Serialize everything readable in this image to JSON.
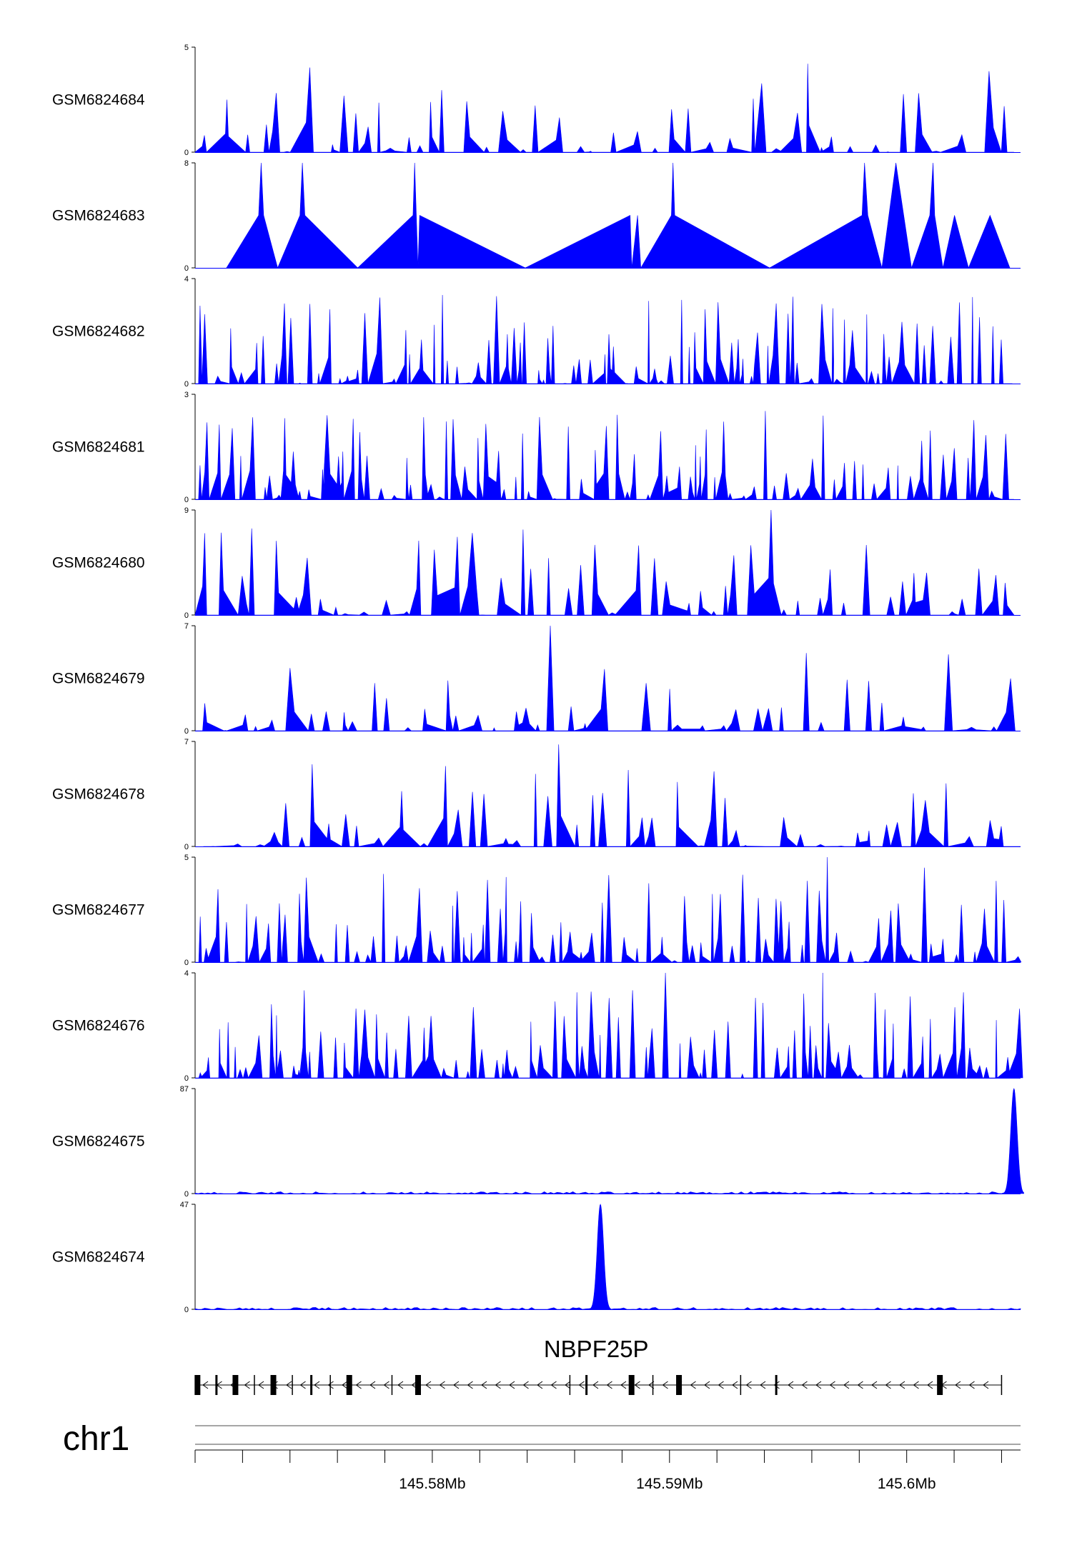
{
  "chart_data": {
    "type": "area",
    "colors": {
      "signal": "#0000ff",
      "axis": "#000000",
      "frame": "#888888"
    },
    "chromosome": "chr1",
    "xlim": [
      145.57,
      145.6048
    ],
    "x_ticks": [
      {
        "value": 145.58,
        "label": "145.58Mb"
      },
      {
        "value": 145.59,
        "label": "145.59Mb"
      },
      {
        "value": 145.6,
        "label": "145.6Mb"
      }
    ],
    "tracks": [
      {
        "name": "GSM6824684",
        "ymax": 5,
        "ymin_label": "0",
        "ymax_label": "5",
        "pattern": "sparse",
        "seed": 11,
        "start": 0.0,
        "end": 0.992
      },
      {
        "name": "GSM6824683",
        "ymax": 8,
        "ymin_label": "0",
        "ymax_label": "8",
        "peaks": [
          [
            0.038,
            0
          ],
          [
            0.077,
            4
          ],
          [
            0.08,
            8
          ],
          [
            0.083,
            4
          ],
          [
            0.1,
            0
          ],
          [
            0.127,
            4
          ],
          [
            0.13,
            8
          ],
          [
            0.133,
            4
          ],
          [
            0.197,
            0
          ],
          [
            0.264,
            4
          ],
          [
            0.266,
            8
          ],
          [
            0.27,
            0
          ],
          [
            0.272,
            4
          ],
          [
            0.4,
            0
          ],
          [
            0.527,
            4
          ],
          [
            0.529,
            0
          ],
          [
            0.536,
            4
          ],
          [
            0.54,
            0
          ],
          [
            0.577,
            4
          ],
          [
            0.579,
            8
          ],
          [
            0.581,
            4
          ],
          [
            0.696,
            0
          ],
          [
            0.808,
            4
          ],
          [
            0.811,
            8
          ],
          [
            0.815,
            4
          ],
          [
            0.832,
            0
          ],
          [
            0.849,
            8
          ],
          [
            0.868,
            0
          ],
          [
            0.89,
            4
          ],
          [
            0.894,
            8
          ],
          [
            0.896,
            4
          ],
          [
            0.906,
            0
          ],
          [
            0.92,
            4
          ],
          [
            0.937,
            0
          ],
          [
            0.963,
            4
          ],
          [
            0.987,
            0
          ]
        ]
      },
      {
        "name": "GSM6824682",
        "ymax": 4,
        "ymin_label": "0",
        "ymax_label": "4",
        "pattern": "dense",
        "seed": 22,
        "start": 0.0,
        "end": 0.99
      },
      {
        "name": "GSM6824681",
        "ymax": 3,
        "ymin_label": "0",
        "ymax_label": "3",
        "pattern": "dense",
        "seed": 33,
        "start": 0.0,
        "end": 0.992
      },
      {
        "name": "GSM6824680",
        "ymax": 9,
        "ymin_label": "0",
        "ymax_label": "9",
        "pattern": "sparse",
        "seed": 44,
        "start": 0.0,
        "end": 0.992,
        "boost": [
          [
            0.7,
            9
          ],
          [
            0.72,
            6
          ]
        ]
      },
      {
        "name": "GSM6824679",
        "ymax": 7,
        "ymin_label": "0",
        "ymax_label": "7",
        "pattern": "sparse",
        "seed": 55,
        "start": 0.0,
        "end": 0.994,
        "boost": [
          [
            0.432,
            7
          ],
          [
            0.765,
            6
          ]
        ]
      },
      {
        "name": "GSM6824678",
        "ymax": 7,
        "ymin_label": "0",
        "ymax_label": "7",
        "pattern": "sparse",
        "seed": 66,
        "start": 0.01,
        "end": 1.0,
        "boost": [
          [
            0.442,
            7
          ],
          [
            0.444,
            6.8
          ]
        ]
      },
      {
        "name": "GSM6824677",
        "ymax": 5,
        "ymin_label": "0",
        "ymax_label": "5",
        "pattern": "dense",
        "seed": 77,
        "start": 0.0,
        "end": 1.0,
        "boost": [
          [
            0.765,
            5
          ],
          [
            0.885,
            4.5
          ]
        ]
      },
      {
        "name": "GSM6824676",
        "ymax": 4,
        "ymin_label": "0",
        "ymax_label": "4",
        "pattern": "dense",
        "seed": 88,
        "start": 0.0,
        "end": 1.0,
        "boost": [
          [
            0.573,
            4
          ],
          [
            0.763,
            4
          ]
        ]
      },
      {
        "name": "GSM6824675",
        "ymax": 87,
        "ymin_label": "0",
        "ymax_label": "87",
        "pattern": "flat",
        "seed": 99,
        "start": 0.0,
        "end": 1.0,
        "spike": [
          0.992,
          87,
          0.006
        ]
      },
      {
        "name": "GSM6824674",
        "ymax": 47,
        "ymin_label": "0",
        "ymax_label": "47",
        "pattern": "flat",
        "seed": 111,
        "start": 0.0,
        "end": 1.0,
        "spike": [
          0.491,
          47,
          0.006
        ]
      }
    ],
    "gene": {
      "name": "NBPF25P",
      "start": 145.57,
      "end": 145.604,
      "exons": [
        145.5701,
        145.5709,
        145.5717,
        145.5733,
        145.5749,
        145.5765,
        145.5794,
        145.5865,
        145.5884,
        145.5904,
        145.5945,
        145.6014
      ]
    }
  }
}
